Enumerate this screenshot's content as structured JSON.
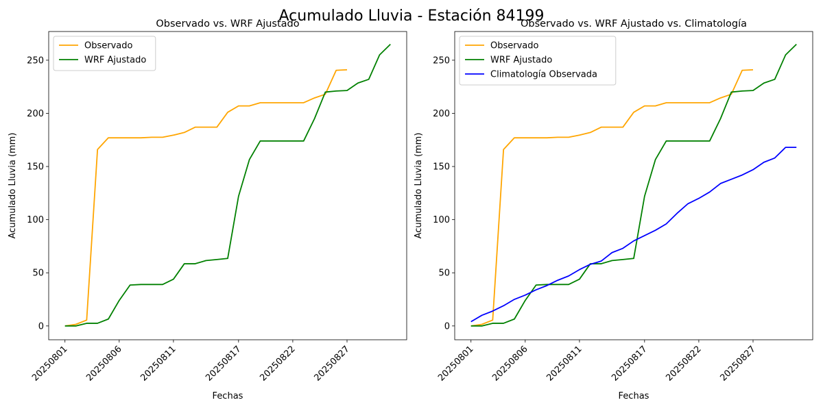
{
  "figure": {
    "suptitle": "Acumulado Lluvia - Estación 84199"
  },
  "colors": {
    "observado": "#ffa500",
    "wrf": "#008000",
    "clima": "#0000ff",
    "axis": "#000000",
    "legend_border": "#cccccc"
  },
  "chart_data": [
    {
      "type": "line",
      "title": "Observado vs. WRF Ajustado",
      "xlabel": "Fechas",
      "ylabel": "Acumulado Lluvia (mm)",
      "x_ticks": [
        "20250801",
        "20250806",
        "20250811",
        "20250817",
        "20250822",
        "20250827"
      ],
      "x_tick_day": [
        1,
        6,
        11,
        17,
        22,
        27
      ],
      "xlim_day": [
        -0.5,
        32.5
      ],
      "ylim": [
        -13,
        277
      ],
      "y_ticks": [
        0,
        50,
        100,
        150,
        200,
        250
      ],
      "grid": false,
      "legend_position": "top-left",
      "series": [
        {
          "name": "Observado",
          "color": "#ffa500",
          "day": [
            1,
            2,
            3,
            4,
            5,
            6,
            7,
            8,
            9,
            10,
            11,
            12,
            13,
            14,
            15,
            16,
            17,
            18,
            19,
            20,
            21,
            22,
            23,
            24,
            25,
            26,
            27
          ],
          "values": [
            0,
            1.5,
            5.5,
            166,
            177,
            177,
            177,
            177,
            177.5,
            177.5,
            179.5,
            182,
            187,
            187,
            187,
            201,
            207,
            207,
            210,
            210,
            210,
            210,
            210,
            214.5,
            218,
            240.5,
            241
          ]
        },
        {
          "name": "WRF Ajustado",
          "color": "#008000",
          "day": [
            1,
            2,
            3,
            4,
            5,
            6,
            7,
            8,
            9,
            10,
            11,
            12,
            13,
            14,
            15,
            16,
            17,
            18,
            19,
            20,
            21,
            22,
            23,
            24,
            25,
            26,
            27,
            28,
            29,
            30,
            31
          ],
          "values": [
            0,
            0,
            2.5,
            2.5,
            6.5,
            24,
            38.5,
            39,
            39,
            39,
            44,
            58.5,
            58.5,
            61.5,
            62.5,
            63.5,
            122,
            156.5,
            174,
            174,
            174,
            174,
            174,
            195,
            220,
            221,
            221.5,
            228.5,
            232,
            255,
            265
          ]
        }
      ]
    },
    {
      "type": "line",
      "title": "Observado vs. WRF Ajustado vs. Climatología",
      "xlabel": "Fechas",
      "ylabel": "Acumulado Lluvia (mm)",
      "x_ticks": [
        "20250801",
        "20250806",
        "20250811",
        "20250817",
        "20250822",
        "20250827"
      ],
      "x_tick_day": [
        1,
        6,
        11,
        17,
        22,
        27
      ],
      "xlim_day": [
        -0.5,
        32.5
      ],
      "ylim": [
        -13,
        277
      ],
      "y_ticks": [
        0,
        50,
        100,
        150,
        200,
        250
      ],
      "grid": false,
      "legend_position": "top-left",
      "series": [
        {
          "name": "Observado",
          "color": "#ffa500",
          "day": [
            1,
            2,
            3,
            4,
            5,
            6,
            7,
            8,
            9,
            10,
            11,
            12,
            13,
            14,
            15,
            16,
            17,
            18,
            19,
            20,
            21,
            22,
            23,
            24,
            25,
            26,
            27
          ],
          "values": [
            0,
            1.5,
            5.5,
            166,
            177,
            177,
            177,
            177,
            177.5,
            177.5,
            179.5,
            182,
            187,
            187,
            187,
            201,
            207,
            207,
            210,
            210,
            210,
            210,
            210,
            214.5,
            218,
            240.5,
            241
          ]
        },
        {
          "name": "WRF Ajustado",
          "color": "#008000",
          "day": [
            1,
            2,
            3,
            4,
            5,
            6,
            7,
            8,
            9,
            10,
            11,
            12,
            13,
            14,
            15,
            16,
            17,
            18,
            19,
            20,
            21,
            22,
            23,
            24,
            25,
            26,
            27,
            28,
            29,
            30,
            31
          ],
          "values": [
            0,
            0,
            2.5,
            2.5,
            6.5,
            24,
            38.5,
            39,
            39,
            39,
            44,
            58.5,
            58.5,
            61.5,
            62.5,
            63.5,
            122,
            156.5,
            174,
            174,
            174,
            174,
            174,
            195,
            220,
            221,
            221.5,
            228.5,
            232,
            255,
            265
          ]
        },
        {
          "name": "Climatología Observada",
          "color": "#0000ff",
          "day": [
            1,
            2,
            3,
            4,
            5,
            6,
            7,
            8,
            9,
            10,
            11,
            12,
            13,
            14,
            15,
            16,
            17,
            18,
            19,
            20,
            21,
            22,
            23,
            24,
            25,
            26,
            27,
            28,
            29,
            30,
            31
          ],
          "values": [
            4,
            10,
            14,
            19,
            25,
            29,
            34,
            38,
            43,
            47,
            53,
            58,
            61,
            69,
            73,
            80,
            85,
            90,
            96,
            106,
            115,
            120,
            126,
            134,
            138,
            142,
            147,
            154,
            158,
            168,
            168
          ]
        }
      ]
    }
  ]
}
